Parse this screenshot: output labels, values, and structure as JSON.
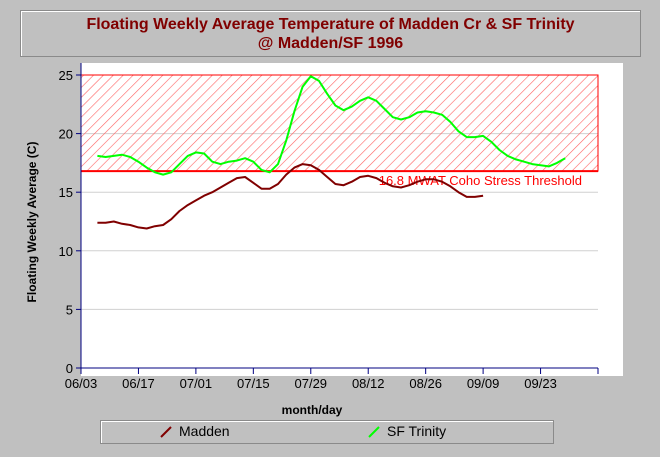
{
  "title": {
    "line1": "Floating Weekly Average Temperature of Madden Cr & SF Trinity",
    "line2": "@ Madden/SF 1996"
  },
  "legend": {
    "items": [
      {
        "label": "Madden",
        "color": "#800000"
      },
      {
        "label": "SF Trinity",
        "color": "#00ff00"
      }
    ]
  },
  "chart_data": {
    "type": "line",
    "xlabel": "month/day",
    "ylabel": "Floating Weekly Average (C)",
    "ylim": [
      0,
      25
    ],
    "yticks": [
      0,
      5,
      10,
      15,
      20,
      25
    ],
    "xlim": [
      "1996-06-03",
      "1996-10-07"
    ],
    "xtick_labels": [
      "06/03",
      "06/17",
      "07/01",
      "07/15",
      "07/29",
      "08/12",
      "08/26",
      "09/09",
      "09/23"
    ],
    "threshold": {
      "value": 16.8,
      "label": "16.8 MWAT Coho Stress Threshold",
      "color": "#ff0000"
    },
    "series": [
      {
        "name": "Madden",
        "color": "#800000",
        "points": [
          [
            "1996-06-07",
            12.4
          ],
          [
            "1996-06-09",
            12.4
          ],
          [
            "1996-06-11",
            12.5
          ],
          [
            "1996-06-13",
            12.3
          ],
          [
            "1996-06-15",
            12.2
          ],
          [
            "1996-06-17",
            12.0
          ],
          [
            "1996-06-19",
            11.9
          ],
          [
            "1996-06-21",
            12.1
          ],
          [
            "1996-06-23",
            12.2
          ],
          [
            "1996-06-25",
            12.7
          ],
          [
            "1996-06-27",
            13.4
          ],
          [
            "1996-06-29",
            13.9
          ],
          [
            "1996-07-01",
            14.3
          ],
          [
            "1996-07-03",
            14.7
          ],
          [
            "1996-07-05",
            15.0
          ],
          [
            "1996-07-07",
            15.4
          ],
          [
            "1996-07-09",
            15.8
          ],
          [
            "1996-07-11",
            16.2
          ],
          [
            "1996-07-13",
            16.3
          ],
          [
            "1996-07-15",
            15.8
          ],
          [
            "1996-07-17",
            15.3
          ],
          [
            "1996-07-19",
            15.3
          ],
          [
            "1996-07-21",
            15.7
          ],
          [
            "1996-07-23",
            16.5
          ],
          [
            "1996-07-25",
            17.1
          ],
          [
            "1996-07-27",
            17.4
          ],
          [
            "1996-07-29",
            17.3
          ],
          [
            "1996-07-31",
            16.9
          ],
          [
            "1996-08-02",
            16.3
          ],
          [
            "1996-08-04",
            15.7
          ],
          [
            "1996-08-06",
            15.6
          ],
          [
            "1996-08-08",
            15.9
          ],
          [
            "1996-08-10",
            16.3
          ],
          [
            "1996-08-12",
            16.4
          ],
          [
            "1996-08-14",
            16.2
          ],
          [
            "1996-08-16",
            15.8
          ],
          [
            "1996-08-18",
            15.5
          ],
          [
            "1996-08-20",
            15.4
          ],
          [
            "1996-08-22",
            15.6
          ],
          [
            "1996-08-24",
            15.9
          ],
          [
            "1996-08-26",
            16.1
          ],
          [
            "1996-08-28",
            16.1
          ],
          [
            "1996-08-30",
            15.9
          ],
          [
            "1996-09-01",
            15.5
          ],
          [
            "1996-09-03",
            15.0
          ],
          [
            "1996-09-05",
            14.6
          ],
          [
            "1996-09-07",
            14.6
          ],
          [
            "1996-09-09",
            14.7
          ]
        ]
      },
      {
        "name": "SF Trinity",
        "color": "#00ff00",
        "points": [
          [
            "1996-06-07",
            18.1
          ],
          [
            "1996-06-09",
            18.0
          ],
          [
            "1996-06-11",
            18.1
          ],
          [
            "1996-06-13",
            18.2
          ],
          [
            "1996-06-15",
            18.0
          ],
          [
            "1996-06-17",
            17.6
          ],
          [
            "1996-06-19",
            17.1
          ],
          [
            "1996-06-21",
            16.7
          ],
          [
            "1996-06-23",
            16.5
          ],
          [
            "1996-06-25",
            16.7
          ],
          [
            "1996-06-27",
            17.4
          ],
          [
            "1996-06-29",
            18.1
          ],
          [
            "1996-07-01",
            18.4
          ],
          [
            "1996-07-03",
            18.3
          ],
          [
            "1996-07-05",
            17.6
          ],
          [
            "1996-07-07",
            17.4
          ],
          [
            "1996-07-09",
            17.6
          ],
          [
            "1996-07-11",
            17.7
          ],
          [
            "1996-07-13",
            17.9
          ],
          [
            "1996-07-15",
            17.6
          ],
          [
            "1996-07-17",
            16.9
          ],
          [
            "1996-07-19",
            16.7
          ],
          [
            "1996-07-21",
            17.4
          ],
          [
            "1996-07-23",
            19.4
          ],
          [
            "1996-07-25",
            21.9
          ],
          [
            "1996-07-27",
            24.0
          ],
          [
            "1996-07-29",
            24.9
          ],
          [
            "1996-07-31",
            24.5
          ],
          [
            "1996-08-02",
            23.4
          ],
          [
            "1996-08-04",
            22.4
          ],
          [
            "1996-08-06",
            22.0
          ],
          [
            "1996-08-08",
            22.3
          ],
          [
            "1996-08-10",
            22.8
          ],
          [
            "1996-08-12",
            23.1
          ],
          [
            "1996-08-14",
            22.8
          ],
          [
            "1996-08-16",
            22.1
          ],
          [
            "1996-08-18",
            21.4
          ],
          [
            "1996-08-20",
            21.2
          ],
          [
            "1996-08-22",
            21.4
          ],
          [
            "1996-08-24",
            21.8
          ],
          [
            "1996-08-26",
            21.9
          ],
          [
            "1996-08-28",
            21.8
          ],
          [
            "1996-08-30",
            21.6
          ],
          [
            "1996-09-01",
            21.0
          ],
          [
            "1996-09-03",
            20.2
          ],
          [
            "1996-09-05",
            19.7
          ],
          [
            "1996-09-07",
            19.7
          ],
          [
            "1996-09-09",
            19.8
          ],
          [
            "1996-09-11",
            19.3
          ],
          [
            "1996-09-13",
            18.6
          ],
          [
            "1996-09-15",
            18.1
          ],
          [
            "1996-09-17",
            17.8
          ],
          [
            "1996-09-19",
            17.6
          ],
          [
            "1996-09-21",
            17.4
          ],
          [
            "1996-09-23",
            17.3
          ],
          [
            "1996-09-25",
            17.2
          ],
          [
            "1996-09-27",
            17.5
          ],
          [
            "1996-09-29",
            17.9
          ]
        ]
      }
    ]
  }
}
